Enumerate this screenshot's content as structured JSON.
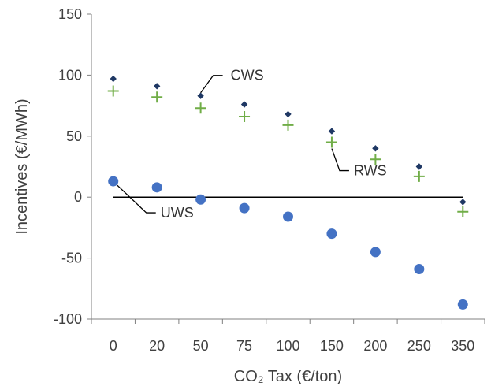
{
  "chart_data": {
    "type": "scatter",
    "categories": [
      "0",
      "20",
      "50",
      "75",
      "100",
      "150",
      "200",
      "250",
      "350"
    ],
    "xlabel": "CO₂ Tax (€/ton)",
    "ylabel": "Incentives (€/MWh)",
    "ylim": [
      -100,
      150
    ],
    "yticks": [
      -100,
      -50,
      0,
      50,
      100,
      150
    ],
    "grid": false,
    "series": [
      {
        "name": "CWS",
        "marker": "diamond",
        "color": "#1F3864",
        "values": [
          97,
          91,
          83,
          76,
          68,
          54,
          40,
          25,
          -4
        ]
      },
      {
        "name": "RWS",
        "marker": "plus",
        "color": "#70AD47",
        "values": [
          87,
          82,
          73,
          66,
          59,
          45,
          31,
          17,
          -12
        ]
      },
      {
        "name": "UWS",
        "marker": "circle",
        "color": "#4472C4",
        "values": [
          13,
          8,
          -2,
          -9,
          -16,
          -30,
          -45,
          -59,
          -88
        ]
      }
    ],
    "annotations": [
      {
        "text": "CWS",
        "series": "CWS",
        "index": 2
      },
      {
        "text": "RWS",
        "series": "RWS",
        "index": 5
      },
      {
        "text": "UWS",
        "series": "UWS",
        "index": 0
      }
    ]
  }
}
